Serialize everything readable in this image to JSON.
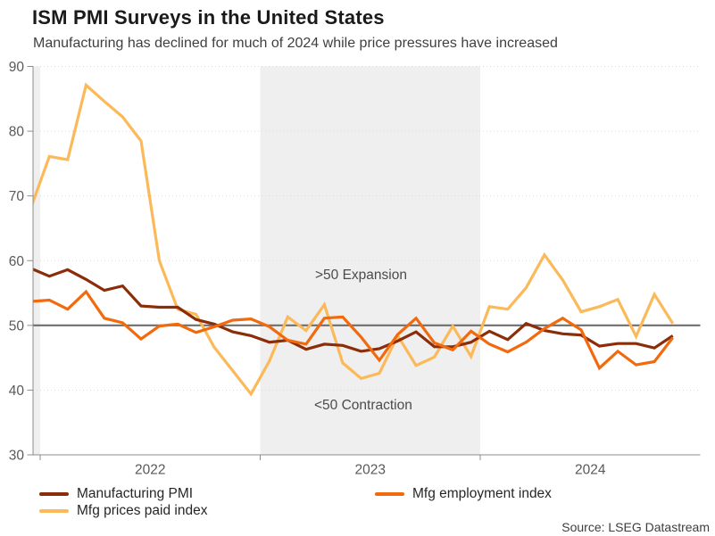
{
  "header": {
    "title": "ISM PMI Surveys in the United States",
    "subtitle": "Manufacturing has declined for much of 2024 while price pressures have increased"
  },
  "chart_data": {
    "type": "line",
    "x": [
      "Dec 2021",
      "Jan 2022",
      "Feb 2022",
      "Mar 2022",
      "Apr 2022",
      "May 2022",
      "Jun 2022",
      "Jul 2022",
      "Aug 2022",
      "Sep 2022",
      "Oct 2022",
      "Nov 2022",
      "Dec 2022",
      "Jan 2023",
      "Feb 2023",
      "Mar 2023",
      "Apr 2023",
      "May 2023",
      "Jun 2023",
      "Jul 2023",
      "Aug 2023",
      "Sep 2023",
      "Oct 2023",
      "Nov 2023",
      "Dec 2023",
      "Jan 2024",
      "Feb 2024",
      "Mar 2024",
      "Apr 2024",
      "May 2024",
      "Jun 2024",
      "Jul 2024",
      "Aug 2024",
      "Sep 2024",
      "Oct 2024",
      "Nov 2024"
    ],
    "x_axis_tick_labels": [
      "2022",
      "2023",
      "2024"
    ],
    "ylim": [
      30,
      90
    ],
    "yticks": [
      30,
      40,
      50,
      60,
      70,
      80,
      90
    ],
    "grid": "light dotted horizontal gridlines",
    "reference_line": {
      "value": 50,
      "color": "#6E6E6E"
    },
    "shaded_bands": [
      {
        "year": "2021",
        "note": "partial sliver at left edge of plot",
        "color": "#EFEFEF"
      },
      {
        "year": "2023",
        "color": "#EFEFEF"
      }
    ],
    "series": [
      {
        "name": "Manufacturing PMI",
        "color": "#8B2D08",
        "values": [
          58.8,
          57.6,
          58.6,
          57.1,
          55.4,
          56.1,
          53.0,
          52.8,
          52.8,
          50.9,
          50.2,
          49.0,
          48.4,
          47.4,
          47.7,
          46.3,
          47.1,
          46.9,
          46.0,
          46.4,
          47.6,
          49.0,
          46.7,
          46.7,
          47.4,
          49.1,
          47.8,
          50.3,
          49.2,
          48.7,
          48.5,
          46.8,
          47.2,
          47.2,
          46.5,
          48.4
        ]
      },
      {
        "name": "Mfg employment index",
        "color": "#F26A0E",
        "values": [
          53.7,
          53.9,
          52.5,
          55.2,
          51.1,
          50.4,
          47.9,
          49.9,
          50.2,
          48.9,
          49.8,
          50.8,
          51.0,
          49.8,
          47.7,
          47.1,
          51.1,
          51.3,
          48.2,
          44.6,
          48.6,
          51.1,
          47.3,
          46.2,
          49.1,
          47.1,
          45.9,
          47.4,
          49.5,
          51.1,
          49.3,
          43.4,
          46.0,
          43.9,
          44.4,
          48.1
        ]
      },
      {
        "name": "Mfg prices paid index",
        "color": "#FBB959",
        "values": [
          68.2,
          76.1,
          75.6,
          87.1,
          84.6,
          82.2,
          78.5,
          60.0,
          52.5,
          51.7,
          46.6,
          43.0,
          39.4,
          44.5,
          51.3,
          49.2,
          53.2,
          44.2,
          41.8,
          42.6,
          48.4,
          43.8,
          45.1,
          49.9,
          45.2,
          52.9,
          52.5,
          55.8,
          60.9,
          57.0,
          52.1,
          52.9,
          54.0,
          48.3,
          54.8,
          50.3
        ]
      }
    ],
    "annotations": [
      {
        "text": ">50 Expansion"
      },
      {
        "text": "<50 Contraction"
      }
    ],
    "legend_position": "bottom-left, two columns"
  },
  "legend": {
    "items": [
      {
        "label": "Manufacturing PMI",
        "color": "#8B2D08"
      },
      {
        "label": "Mfg employment index",
        "color": "#F26A0E"
      },
      {
        "label": "Mfg prices paid index",
        "color": "#FBB959"
      }
    ]
  },
  "footer": {
    "source": "Source: LSEG Datastream"
  }
}
